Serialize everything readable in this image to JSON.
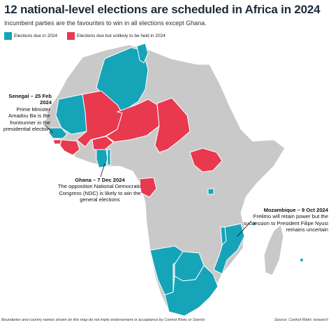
{
  "header": {
    "title": "12 national-level elections are scheduled in Africa in 2024",
    "subtitle": "Incumbent parties are the favourites to win in all elections except Ghana."
  },
  "legend": {
    "due": {
      "label": "Elections due in 2024",
      "color": "#16a4b8"
    },
    "unlikely": {
      "label": "Elections due but unlikely to be held in 2024",
      "color": "#e8394f"
    }
  },
  "colors": {
    "land": "#c9c9c9",
    "border": "#ffffff",
    "ocean": "#ffffff"
  },
  "annotations": {
    "senegal": {
      "heading": "Senegal – 25 Feb 2024",
      "lines": [
        "Prime Minister",
        "Amadou Ba is the",
        "frontrunner in the",
        "presidential election"
      ]
    },
    "ghana": {
      "heading": "Ghana – 7 Dec 2024",
      "lines": [
        "The opposition National Democratic",
        "Congress (NDC) is likely to win the",
        "general elections"
      ]
    },
    "mozambique": {
      "heading": "Mozambique – 9 Oct 2024",
      "lines": [
        "Frelimo will retain power but the",
        "succession to President Filipe Nyusi",
        "remains uncertain"
      ]
    }
  },
  "footer": {
    "disclaimer": "Boundaries and country names shown on this map do not imply endorsement or acceptance by Control Risks or Seerist",
    "source": "Source: Control Risks' research"
  }
}
